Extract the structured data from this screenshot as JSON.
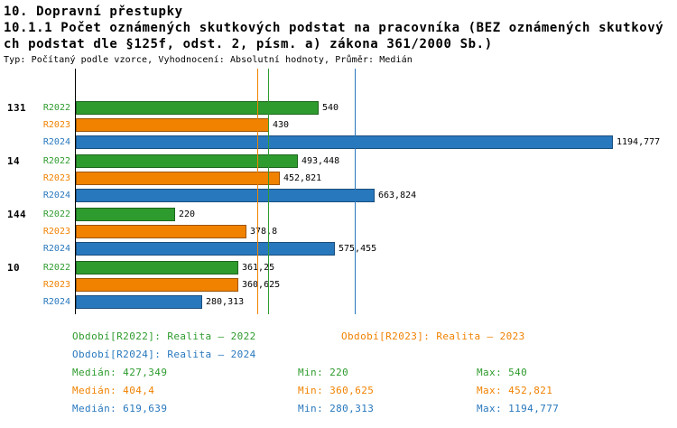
{
  "header": {
    "title": "10. Dopravní přestupky",
    "subtitle_line1": "10.1.1 Počet oznámených skutkových podstat na pracovníka (BEZ oznámených skutkový",
    "subtitle_line2": "ch podstat dle §125f, odst. 2, písm. a) zákona 361/2000 Sb.)",
    "meta": "Typ: Počítaný podle vzorce, Vyhodnocení: Absolutní hodnoty, Průměr: Medián"
  },
  "colors": {
    "r2022": "#2e9b2e",
    "r2023": "#f08200",
    "r2024": "#2878bd",
    "text": "#000000",
    "background": "#ffffff"
  },
  "chart_data": {
    "type": "bar",
    "orientation": "horizontal",
    "title": "10. Dopravní přestupky",
    "xlabel": "",
    "ylabel": "",
    "grid": false,
    "legend_position": "bottom",
    "x_axis_ticks": "none",
    "categories": [
      "131",
      "14",
      "144",
      "10"
    ],
    "series": [
      {
        "name": "R2022",
        "color": "#2e9b2e",
        "values": [
          540,
          493.448,
          220,
          361.25
        ],
        "labels": [
          "540",
          "493,448",
          "220",
          "361,25"
        ]
      },
      {
        "name": "R2023",
        "color": "#f08200",
        "values": [
          430,
          452.821,
          378.8,
          360.625
        ],
        "labels": [
          "430",
          "452,821",
          "378,8",
          "360,625"
        ]
      },
      {
        "name": "R2024",
        "color": "#2878bd",
        "values": [
          1194.777,
          663.824,
          575.455,
          280.313
        ],
        "labels": [
          "1194,777",
          "663,824",
          "575,455",
          "280,313"
        ]
      }
    ],
    "median_lines": [
      {
        "series": "R2022",
        "value": 427.349,
        "label": "427,349",
        "color": "#2e9b2e"
      },
      {
        "series": "R2023",
        "value": 404.4,
        "label": "404,4",
        "color": "#f08200"
      },
      {
        "series": "R2024",
        "value": 619.639,
        "label": "619,639",
        "color": "#2878bd"
      }
    ]
  },
  "legend": {
    "r2022": "Období[R2022]: Realita – 2022",
    "r2023": "Období[R2023]: Realita – 2023",
    "r2024": "Období[R2024]: Realita – 2024"
  },
  "stats": {
    "r2022": {
      "median": "Medián: 427,349",
      "min": "Min: 220",
      "max": "Max: 540"
    },
    "r2023": {
      "median": "Medián: 404,4",
      "min": "Min: 360,625",
      "max": "Max: 452,821"
    },
    "r2024": {
      "median": "Medián: 619,639",
      "min": "Min: 280,313",
      "max": "Max: 1194,777"
    }
  }
}
